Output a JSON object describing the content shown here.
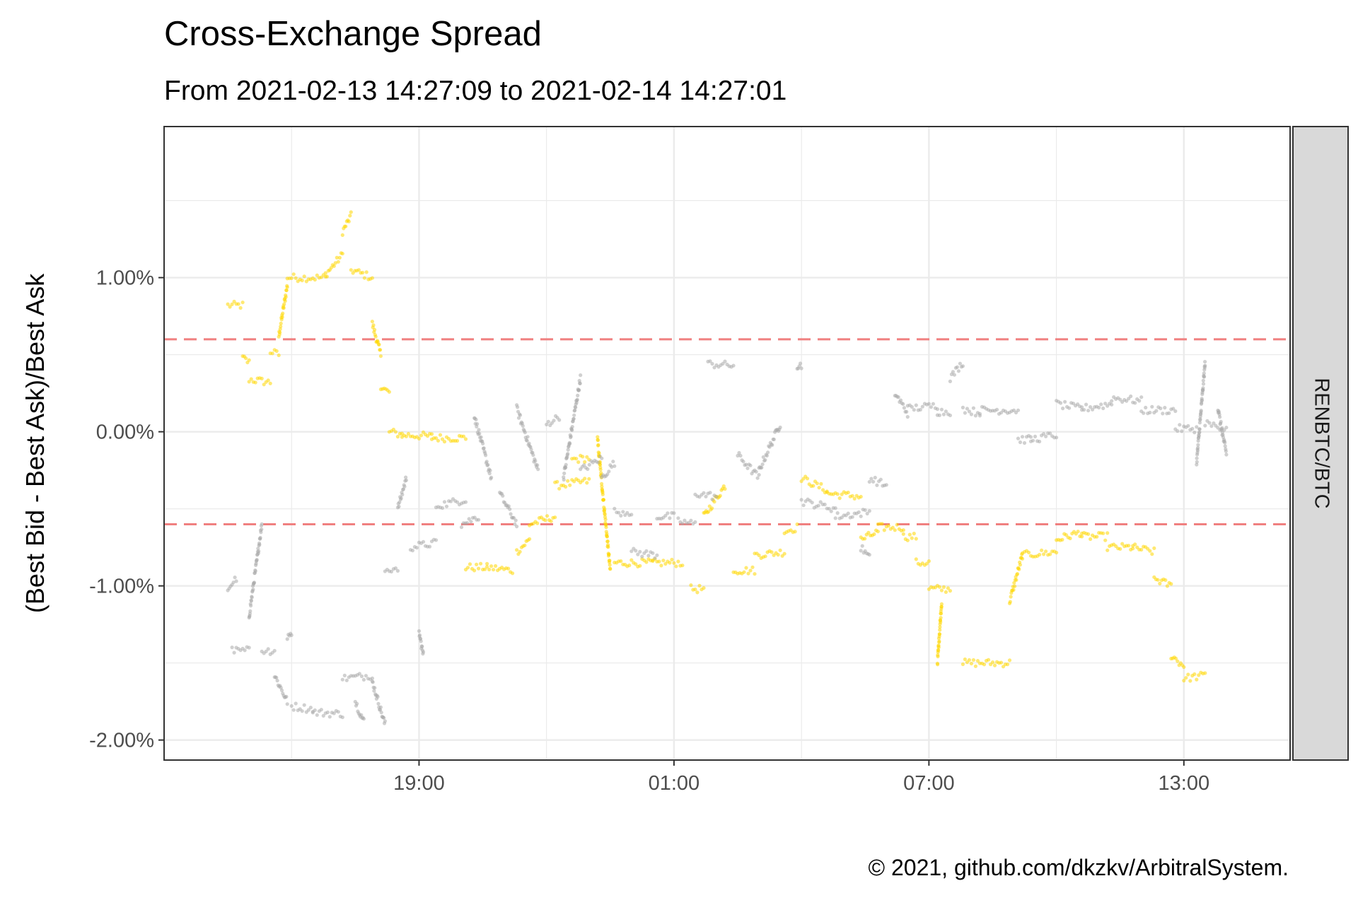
{
  "title": "Cross-Exchange Spread",
  "subtitle": "From 2021-02-13 14:27:09 to 2021-02-14 14:27:01",
  "caption": "© 2021, github.com/dkzkv/ArbitralSystem.",
  "colors": {
    "series_yellow": "#FFD700",
    "series_gray": "#A9A9A9",
    "threshold": "#F08080",
    "strip_fill": "#D9D9D9",
    "panel_border": "#333333",
    "grid_major": "#EBEBEB"
  },
  "chart_data": {
    "type": "scatter",
    "title": "Cross-Exchange Spread",
    "subtitle": "From 2021-02-13 14:27:09 to 2021-02-14 14:27:01",
    "xlabel": "",
    "ylabel": "(Best Bid - Best Ask)/Best Ask",
    "facet_label": "RENBTC/BTC",
    "x_unit": "hours (clock time, 2021-02-13 → 2021-02-14)",
    "xlim": [
      "2021-02-13 13:00",
      "2021-02-14 15:30"
    ],
    "x_ticks": [
      {
        "label": "19:00",
        "value": "2021-02-13 19:00"
      },
      {
        "label": "01:00",
        "value": "2021-02-14 01:00"
      },
      {
        "label": "07:00",
        "value": "2021-02-14 07:00"
      },
      {
        "label": "13:00",
        "value": "2021-02-14 13:00"
      }
    ],
    "ylim": [
      -2.13,
      1.98
    ],
    "y_ticks": [
      {
        "label": "1.00%",
        "value": 1.0
      },
      {
        "label": "0.00%",
        "value": 0.0
      },
      {
        "label": "-1.00%",
        "value": -1.0
      },
      {
        "label": "-2.00%",
        "value": -2.0
      }
    ],
    "threshold_lines": [
      0.6,
      -0.6
    ],
    "grid": true,
    "legend": "none",
    "series": [
      {
        "color": "#FFD700",
        "segments": [
          [
            14.5,
            0.82,
            14.85,
            0.82
          ],
          [
            14.85,
            0.48,
            15.0,
            0.45
          ],
          [
            15.0,
            0.34,
            15.5,
            0.32
          ],
          [
            15.5,
            0.52,
            15.7,
            0.5
          ],
          [
            15.7,
            0.62,
            15.9,
            0.95
          ],
          [
            15.9,
            1.0,
            16.8,
            1.0
          ],
          [
            16.8,
            1.02,
            17.2,
            1.15
          ],
          [
            17.2,
            1.3,
            17.4,
            1.4
          ],
          [
            17.4,
            1.05,
            17.9,
            1.0
          ],
          [
            17.9,
            0.7,
            18.1,
            0.5
          ],
          [
            18.1,
            0.3,
            18.3,
            0.25
          ],
          [
            18.3,
            0.0,
            18.6,
            -0.02
          ],
          [
            18.6,
            -0.02,
            19.3,
            -0.03
          ],
          [
            19.3,
            -0.04,
            20.1,
            -0.04
          ],
          [
            20.1,
            -0.88,
            20.6,
            -0.88
          ],
          [
            20.6,
            -0.88,
            21.2,
            -0.9
          ],
          [
            21.3,
            -0.78,
            21.6,
            -0.7
          ],
          [
            21.6,
            -0.6,
            22.2,
            -0.55
          ],
          [
            22.2,
            -0.35,
            23.0,
            -0.32
          ],
          [
            22.6,
            -0.18,
            23.0,
            -0.17
          ],
          [
            23.2,
            -0.05,
            23.5,
            -0.9
          ],
          [
            23.6,
            -0.85,
            24.5,
            -0.85
          ],
          [
            24.5,
            -0.85,
            25.2,
            -0.85
          ],
          [
            25.4,
            -1.02,
            25.7,
            -1.02
          ],
          [
            25.7,
            -0.55,
            26.2,
            -0.35
          ],
          [
            26.4,
            -0.9,
            26.9,
            -0.9
          ],
          [
            26.9,
            -0.8,
            27.6,
            -0.78
          ],
          [
            27.6,
            -0.65,
            27.9,
            -0.62
          ],
          [
            28.0,
            -0.3,
            28.6,
            -0.38
          ],
          [
            28.6,
            -0.4,
            29.4,
            -0.42
          ],
          [
            29.4,
            -0.7,
            29.8,
            -0.65
          ],
          [
            29.8,
            -0.62,
            30.4,
            -0.62
          ],
          [
            30.4,
            -0.68,
            30.7,
            -0.68
          ],
          [
            30.7,
            -0.85,
            31.0,
            -0.85
          ],
          [
            31.0,
            -1.02,
            31.5,
            -1.02
          ],
          [
            31.2,
            -1.5,
            31.3,
            -1.1
          ],
          [
            31.8,
            -1.5,
            32.9,
            -1.5
          ],
          [
            32.9,
            -1.1,
            33.2,
            -0.8
          ],
          [
            33.2,
            -0.8,
            34.0,
            -0.78
          ],
          [
            34.0,
            -0.7,
            34.6,
            -0.65
          ],
          [
            34.6,
            -0.68,
            35.2,
            -0.68
          ],
          [
            35.2,
            -0.75,
            35.8,
            -0.75
          ],
          [
            35.8,
            -0.75,
            36.3,
            -0.78
          ],
          [
            36.3,
            -0.95,
            36.7,
            -1.0
          ],
          [
            36.7,
            -1.45,
            37.0,
            -1.52
          ],
          [
            37.0,
            -1.6,
            37.5,
            -1.58
          ]
        ]
      },
      {
        "color": "#A9A9A9",
        "segments": [
          [
            14.5,
            -1.02,
            14.7,
            -0.95
          ],
          [
            14.6,
            -1.42,
            15.0,
            -1.42
          ],
          [
            15.0,
            -1.2,
            15.3,
            -0.6
          ],
          [
            15.3,
            -1.42,
            15.6,
            -1.42
          ],
          [
            15.6,
            -1.58,
            15.9,
            -1.75
          ],
          [
            15.9,
            -1.35,
            16.0,
            -1.3
          ],
          [
            16.0,
            -1.78,
            16.5,
            -1.8
          ],
          [
            16.5,
            -1.82,
            17.2,
            -1.83
          ],
          [
            17.2,
            -1.6,
            17.9,
            -1.58
          ],
          [
            17.5,
            -1.75,
            17.7,
            -1.88
          ],
          [
            17.9,
            -1.62,
            18.2,
            -1.9
          ],
          [
            18.2,
            -0.9,
            18.5,
            -0.88
          ],
          [
            18.5,
            -0.5,
            18.7,
            -0.3
          ],
          [
            18.8,
            -0.75,
            19.4,
            -0.72
          ],
          [
            19.0,
            -1.3,
            19.1,
            -1.45
          ],
          [
            19.4,
            -0.48,
            20.1,
            -0.44
          ],
          [
            20.0,
            -0.6,
            20.4,
            -0.55
          ],
          [
            20.3,
            0.1,
            20.7,
            -0.3
          ],
          [
            20.9,
            -0.4,
            21.3,
            -0.6
          ],
          [
            21.3,
            0.15,
            21.8,
            -0.25
          ],
          [
            22.0,
            0.05,
            22.3,
            0.1
          ],
          [
            22.4,
            -0.3,
            22.8,
            0.35
          ],
          [
            22.8,
            -0.25,
            23.3,
            -0.17
          ],
          [
            23.3,
            -0.3,
            23.6,
            -0.2
          ],
          [
            23.6,
            -0.52,
            24.0,
            -0.52
          ],
          [
            24.0,
            -0.78,
            24.6,
            -0.8
          ],
          [
            24.6,
            -0.55,
            25.0,
            -0.55
          ],
          [
            25.1,
            -0.58,
            25.5,
            -0.6
          ],
          [
            25.5,
            -0.4,
            26.0,
            -0.42
          ],
          [
            25.8,
            0.44,
            26.4,
            0.43
          ],
          [
            26.5,
            -0.15,
            27.0,
            -0.3
          ],
          [
            27.0,
            -0.25,
            27.5,
            0.05
          ],
          [
            27.9,
            0.43,
            28.0,
            0.43
          ],
          [
            28.0,
            -0.45,
            28.8,
            -0.5
          ],
          [
            28.8,
            -0.55,
            29.6,
            -0.52
          ],
          [
            29.6,
            -0.3,
            30.0,
            -0.35
          ],
          [
            29.4,
            -0.75,
            29.6,
            -0.82
          ],
          [
            30.2,
            0.25,
            30.5,
            0.12
          ],
          [
            30.5,
            0.15,
            31.2,
            0.17
          ],
          [
            31.2,
            0.13,
            31.5,
            0.13
          ],
          [
            31.5,
            0.35,
            31.8,
            0.45
          ],
          [
            31.8,
            0.15,
            32.2,
            0.12
          ],
          [
            32.2,
            0.14,
            33.1,
            0.14
          ],
          [
            33.1,
            -0.05,
            33.4,
            -0.05
          ],
          [
            33.4,
            -0.05,
            34.0,
            -0.02
          ],
          [
            34.0,
            0.18,
            34.6,
            0.15
          ],
          [
            34.6,
            0.15,
            35.3,
            0.18
          ],
          [
            35.3,
            0.22,
            36.0,
            0.2
          ],
          [
            36.0,
            0.14,
            36.8,
            0.14
          ],
          [
            36.8,
            0.02,
            37.3,
            0.02
          ],
          [
            37.3,
            -0.2,
            37.5,
            0.45
          ],
          [
            37.5,
            0.05,
            38.0,
            0.03
          ],
          [
            37.8,
            0.15,
            38.0,
            -0.15
          ]
        ]
      }
    ]
  },
  "strip": {
    "label": "RENBTC/BTC"
  }
}
